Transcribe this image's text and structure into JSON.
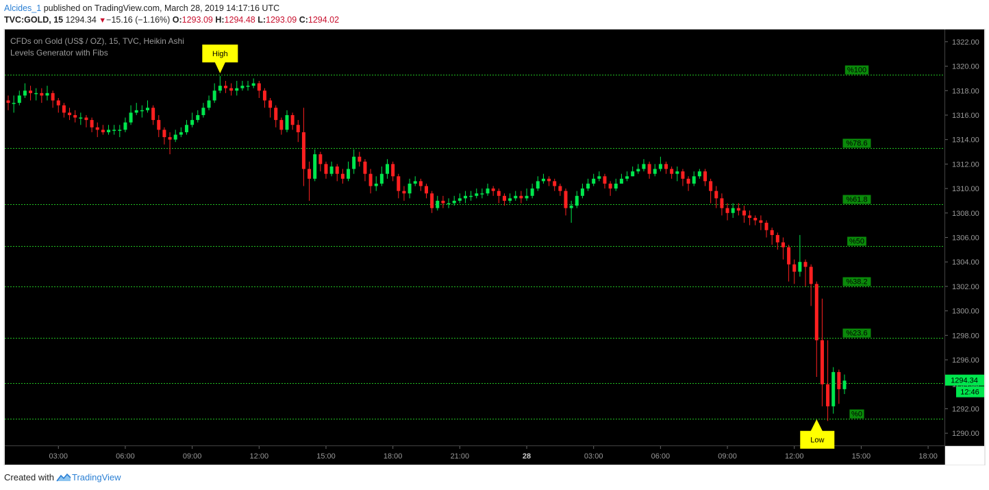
{
  "header": {
    "author": "Alcides_1",
    "published_text": "published on TradingView.com, March 28, 2019 14:17:16 UTC",
    "symbol": "TVC:GOLD, 15",
    "last_price": "1294.34",
    "change_arrow": "▼",
    "change": "−15.16 (−1.16%)",
    "o_label": "O:",
    "o_value": "1293.09",
    "h_label": "H:",
    "h_value": "1294.48",
    "l_label": "L:",
    "l_value": "1293.09",
    "c_label": "C:",
    "c_value": "1294.02"
  },
  "footer": {
    "created_text": "Created with",
    "brand": "TradingView",
    "logo_icon": "tradingview-logo-icon"
  },
  "colors": {
    "background": "#000000",
    "up": "#00e64d",
    "down": "#ff2020",
    "level_line": "#22c322",
    "marker": "#ffff00",
    "axis_text": "#9a9a9a",
    "price_badge": "#00e64d"
  },
  "chart_data": {
    "type": "candlestick",
    "title": "CFDs on Gold (US$ / OZ), 15, TVC, Heikin Ashi",
    "subtitle": "Levels Generator with Fibs",
    "ylim": [
      1289,
      1323
    ],
    "y_ticks": [
      1290,
      1292,
      1294,
      1296,
      1298,
      1300,
      1302,
      1304,
      1306,
      1308,
      1310,
      1312,
      1314,
      1316,
      1318,
      1320,
      1322
    ],
    "y_tick_labels": [
      "1290.00",
      "1292.00",
      "1294.00",
      "1296.00",
      "1298.00",
      "1300.00",
      "1302.00",
      "1304.00",
      "1306.00",
      "1308.00",
      "1310.00",
      "1312.00",
      "1314.00",
      "1316.00",
      "1318.00",
      "1320.00",
      "1322.00"
    ],
    "x_ticks": [
      "03:00",
      "06:00",
      "09:00",
      "12:00",
      "15:00",
      "18:00",
      "21:00",
      "28",
      "03:00",
      "06:00",
      "09:00",
      "12:00",
      "15:00",
      "18:00"
    ],
    "x_tick_bar_index": [
      9,
      21,
      33,
      45,
      57,
      69,
      81,
      93,
      105,
      117,
      129,
      141,
      153,
      165
    ],
    "grid": false,
    "fib_levels": [
      {
        "label": "%100",
        "price": 1319.3
      },
      {
        "label": "%78.6",
        "price": 1313.3
      },
      {
        "label": "%61.8",
        "price": 1308.7
      },
      {
        "label": "%50",
        "price": 1305.3
      },
      {
        "label": "%38.2",
        "price": 1302.0
      },
      {
        "label": "%23.6",
        "price": 1297.8
      },
      {
        "label": "%0",
        "price": 1291.2
      }
    ],
    "extra_level": {
      "price": 1294.1
    },
    "annotations": [
      {
        "text": "High",
        "bar_index": 38,
        "price": 1319.3,
        "position": "above"
      },
      {
        "text": "Low",
        "bar_index": 145,
        "price": 1291.2,
        "position": "below"
      }
    ],
    "last_price_label": "1294.34",
    "countdown_label": "12:46",
    "candles": [
      [
        1317.2,
        1317.0,
        1317.6,
        1316.4
      ],
      [
        1317.0,
        1317.0,
        1317.6,
        1316.2
      ],
      [
        1317.0,
        1317.6,
        1318.0,
        1316.8
      ],
      [
        1317.6,
        1318.0,
        1318.6,
        1317.4
      ],
      [
        1318.0,
        1317.8,
        1318.4,
        1317.2
      ],
      [
        1317.8,
        1317.8,
        1318.2,
        1317.2
      ],
      [
        1317.8,
        1317.6,
        1318.2,
        1317.0
      ],
      [
        1317.6,
        1317.8,
        1318.4,
        1317.2
      ],
      [
        1317.8,
        1317.2,
        1318.0,
        1316.6
      ],
      [
        1317.2,
        1316.8,
        1317.4,
        1316.2
      ],
      [
        1316.8,
        1316.2,
        1317.0,
        1315.8
      ],
      [
        1316.2,
        1316.0,
        1316.6,
        1315.6
      ],
      [
        1316.0,
        1315.8,
        1316.4,
        1315.4
      ],
      [
        1315.8,
        1315.8,
        1316.2,
        1315.2
      ],
      [
        1315.8,
        1315.6,
        1316.0,
        1315.0
      ],
      [
        1315.6,
        1315.0,
        1315.8,
        1314.6
      ],
      [
        1315.0,
        1314.8,
        1315.4,
        1314.2
      ],
      [
        1314.8,
        1314.6,
        1315.2,
        1314.4
      ],
      [
        1314.6,
        1314.8,
        1315.2,
        1314.4
      ],
      [
        1314.8,
        1314.8,
        1315.2,
        1314.4
      ],
      [
        1314.8,
        1314.8,
        1315.2,
        1314.2
      ],
      [
        1314.8,
        1315.4,
        1315.8,
        1314.6
      ],
      [
        1315.4,
        1316.2,
        1316.8,
        1315.2
      ],
      [
        1316.2,
        1316.4,
        1317.0,
        1316.0
      ],
      [
        1316.4,
        1316.4,
        1316.8,
        1315.8
      ],
      [
        1316.4,
        1316.6,
        1317.2,
        1316.2
      ],
      [
        1316.6,
        1315.6,
        1316.8,
        1315.2
      ],
      [
        1315.6,
        1314.8,
        1316.0,
        1314.2
      ],
      [
        1314.8,
        1314.2,
        1315.0,
        1313.6
      ],
      [
        1314.2,
        1314.0,
        1314.6,
        1312.8
      ],
      [
        1314.0,
        1314.4,
        1314.8,
        1313.8
      ],
      [
        1314.4,
        1314.6,
        1315.0,
        1314.2
      ],
      [
        1314.6,
        1315.2,
        1315.6,
        1314.4
      ],
      [
        1315.2,
        1315.6,
        1316.2,
        1315.0
      ],
      [
        1315.6,
        1316.0,
        1316.4,
        1315.4
      ],
      [
        1316.0,
        1316.6,
        1317.0,
        1315.8
      ],
      [
        1316.6,
        1317.2,
        1317.6,
        1316.4
      ],
      [
        1317.2,
        1318.0,
        1318.6,
        1317.0
      ],
      [
        1318.0,
        1318.4,
        1319.2,
        1317.8
      ],
      [
        1318.4,
        1318.2,
        1318.8,
        1317.8
      ],
      [
        1318.2,
        1318.0,
        1318.6,
        1317.6
      ],
      [
        1318.0,
        1318.2,
        1318.8,
        1317.6
      ],
      [
        1318.2,
        1318.4,
        1318.8,
        1318.0
      ],
      [
        1318.4,
        1318.4,
        1318.8,
        1318.0
      ],
      [
        1318.4,
        1318.6,
        1319.0,
        1318.2
      ],
      [
        1318.6,
        1318.0,
        1318.8,
        1317.4
      ],
      [
        1318.0,
        1317.2,
        1318.2,
        1316.6
      ],
      [
        1317.2,
        1316.6,
        1317.4,
        1315.8
      ],
      [
        1316.6,
        1315.6,
        1316.8,
        1315.0
      ],
      [
        1315.6,
        1314.8,
        1315.8,
        1314.4
      ],
      [
        1314.8,
        1316.0,
        1316.4,
        1314.6
      ],
      [
        1316.0,
        1315.2,
        1316.2,
        1314.8
      ],
      [
        1315.2,
        1314.6,
        1315.6,
        1313.8
      ],
      [
        1314.6,
        1311.6,
        1316.6,
        1310.2
      ],
      [
        1311.6,
        1310.8,
        1312.2,
        1309.0
      ],
      [
        1310.8,
        1312.8,
        1313.2,
        1310.6
      ],
      [
        1312.8,
        1312.0,
        1313.0,
        1311.4
      ],
      [
        1312.0,
        1311.2,
        1312.2,
        1310.8
      ],
      [
        1311.2,
        1311.8,
        1312.2,
        1311.0
      ],
      [
        1311.8,
        1311.2,
        1312.0,
        1310.6
      ],
      [
        1311.2,
        1310.8,
        1311.6,
        1310.4
      ],
      [
        1310.8,
        1311.6,
        1312.2,
        1310.6
      ],
      [
        1311.6,
        1312.6,
        1313.2,
        1311.2
      ],
      [
        1312.6,
        1312.2,
        1313.0,
        1311.8
      ],
      [
        1312.2,
        1311.2,
        1312.4,
        1310.6
      ],
      [
        1311.2,
        1310.2,
        1311.6,
        1309.6
      ],
      [
        1310.2,
        1310.4,
        1311.0,
        1309.8
      ],
      [
        1310.4,
        1311.2,
        1311.8,
        1310.2
      ],
      [
        1311.2,
        1312.0,
        1312.4,
        1310.8
      ],
      [
        1312.0,
        1311.0,
        1312.2,
        1310.6
      ],
      [
        1311.0,
        1309.8,
        1311.2,
        1309.2
      ],
      [
        1309.8,
        1309.6,
        1310.2,
        1309.0
      ],
      [
        1309.6,
        1310.4,
        1310.8,
        1309.2
      ],
      [
        1310.4,
        1310.6,
        1311.0,
        1310.2
      ],
      [
        1310.6,
        1310.2,
        1310.8,
        1309.8
      ],
      [
        1310.2,
        1309.6,
        1310.4,
        1309.2
      ],
      [
        1309.6,
        1308.4,
        1309.8,
        1308.0
      ],
      [
        1308.4,
        1309.0,
        1309.4,
        1308.2
      ],
      [
        1309.0,
        1308.8,
        1309.4,
        1308.4
      ],
      [
        1308.8,
        1308.8,
        1309.2,
        1308.4
      ],
      [
        1308.8,
        1309.0,
        1309.4,
        1308.6
      ],
      [
        1309.0,
        1309.2,
        1309.6,
        1308.8
      ],
      [
        1309.2,
        1309.4,
        1309.8,
        1308.8
      ],
      [
        1309.4,
        1309.4,
        1309.8,
        1309.0
      ],
      [
        1309.4,
        1309.6,
        1310.0,
        1309.2
      ],
      [
        1309.6,
        1309.6,
        1310.0,
        1309.2
      ],
      [
        1309.6,
        1310.0,
        1310.4,
        1309.4
      ],
      [
        1310.0,
        1309.8,
        1310.2,
        1309.4
      ],
      [
        1309.8,
        1309.4,
        1310.0,
        1308.8
      ],
      [
        1309.4,
        1309.0,
        1309.6,
        1308.6
      ],
      [
        1309.0,
        1309.2,
        1309.6,
        1308.8
      ],
      [
        1309.2,
        1309.4,
        1309.8,
        1309.0
      ],
      [
        1309.4,
        1309.2,
        1309.8,
        1308.8
      ],
      [
        1309.2,
        1309.4,
        1310.0,
        1309.0
      ],
      [
        1309.4,
        1310.0,
        1310.4,
        1309.2
      ],
      [
        1310.0,
        1310.6,
        1311.0,
        1309.8
      ],
      [
        1310.6,
        1310.8,
        1311.2,
        1310.4
      ],
      [
        1310.8,
        1310.6,
        1311.0,
        1310.2
      ],
      [
        1310.6,
        1310.2,
        1310.8,
        1309.8
      ],
      [
        1310.2,
        1309.8,
        1310.4,
        1309.4
      ],
      [
        1309.8,
        1308.4,
        1310.0,
        1307.8
      ],
      [
        1308.4,
        1308.6,
        1309.0,
        1307.2
      ],
      [
        1308.6,
        1309.4,
        1309.8,
        1308.4
      ],
      [
        1309.4,
        1310.0,
        1310.4,
        1309.2
      ],
      [
        1310.0,
        1310.4,
        1310.8,
        1309.8
      ],
      [
        1310.4,
        1310.8,
        1311.2,
        1310.2
      ],
      [
        1310.8,
        1311.0,
        1311.4,
        1310.6
      ],
      [
        1311.0,
        1310.4,
        1311.2,
        1310.0
      ],
      [
        1310.4,
        1310.0,
        1310.6,
        1309.4
      ],
      [
        1310.0,
        1310.4,
        1310.8,
        1309.8
      ],
      [
        1310.4,
        1310.8,
        1311.2,
        1310.6
      ],
      [
        1310.8,
        1311.0,
        1311.4,
        1310.6
      ],
      [
        1311.0,
        1311.4,
        1311.8,
        1311.0
      ],
      [
        1311.4,
        1311.6,
        1312.0,
        1311.2
      ],
      [
        1311.6,
        1312.0,
        1312.4,
        1311.4
      ],
      [
        1312.0,
        1311.2,
        1312.2,
        1310.8
      ],
      [
        1311.2,
        1311.6,
        1312.0,
        1311.0
      ],
      [
        1311.6,
        1312.0,
        1312.6,
        1311.4
      ],
      [
        1312.0,
        1311.6,
        1312.2,
        1311.2
      ],
      [
        1311.6,
        1311.2,
        1311.8,
        1310.8
      ],
      [
        1311.2,
        1311.4,
        1311.8,
        1310.6
      ],
      [
        1311.4,
        1310.8,
        1311.6,
        1310.2
      ],
      [
        1310.8,
        1310.4,
        1311.0,
        1309.8
      ],
      [
        1310.4,
        1311.0,
        1311.4,
        1310.2
      ],
      [
        1311.0,
        1311.4,
        1311.6,
        1310.8
      ],
      [
        1311.4,
        1310.6,
        1311.6,
        1310.2
      ],
      [
        1310.6,
        1309.8,
        1310.8,
        1308.8
      ],
      [
        1309.8,
        1309.2,
        1310.2,
        1308.4
      ],
      [
        1309.2,
        1308.4,
        1309.6,
        1307.8
      ],
      [
        1308.4,
        1308.0,
        1308.8,
        1307.4
      ],
      [
        1308.0,
        1308.4,
        1308.8,
        1307.6
      ],
      [
        1308.4,
        1308.2,
        1308.8,
        1307.8
      ],
      [
        1308.2,
        1307.8,
        1308.6,
        1307.2
      ],
      [
        1307.8,
        1307.6,
        1308.2,
        1307.0
      ],
      [
        1307.6,
        1307.4,
        1307.8,
        1307.0
      ],
      [
        1307.4,
        1307.2,
        1307.8,
        1306.6
      ],
      [
        1307.2,
        1306.6,
        1307.4,
        1306.0
      ],
      [
        1306.6,
        1306.2,
        1306.8,
        1305.4
      ],
      [
        1306.2,
        1305.6,
        1306.4,
        1305.0
      ],
      [
        1305.6,
        1305.2,
        1306.0,
        1304.2
      ],
      [
        1305.2,
        1303.8,
        1305.4,
        1302.4
      ],
      [
        1303.8,
        1303.2,
        1304.2,
        1302.2
      ],
      [
        1303.2,
        1304.0,
        1306.2,
        1302.8
      ],
      [
        1304.0,
        1303.6,
        1304.2,
        1302.0
      ],
      [
        1303.6,
        1302.2,
        1303.8,
        1300.4
      ],
      [
        1302.2,
        1297.6,
        1302.4,
        1294.6
      ],
      [
        1297.6,
        1294.0,
        1301.0,
        1292.2
      ],
      [
        1294.0,
        1292.2,
        1297.6,
        1291.0
      ],
      [
        1292.2,
        1295.0,
        1295.4,
        1291.6
      ],
      [
        1295.0,
        1293.6,
        1295.2,
        1292.4
      ],
      [
        1293.6,
        1294.3,
        1294.8,
        1293.2
      ]
    ]
  }
}
